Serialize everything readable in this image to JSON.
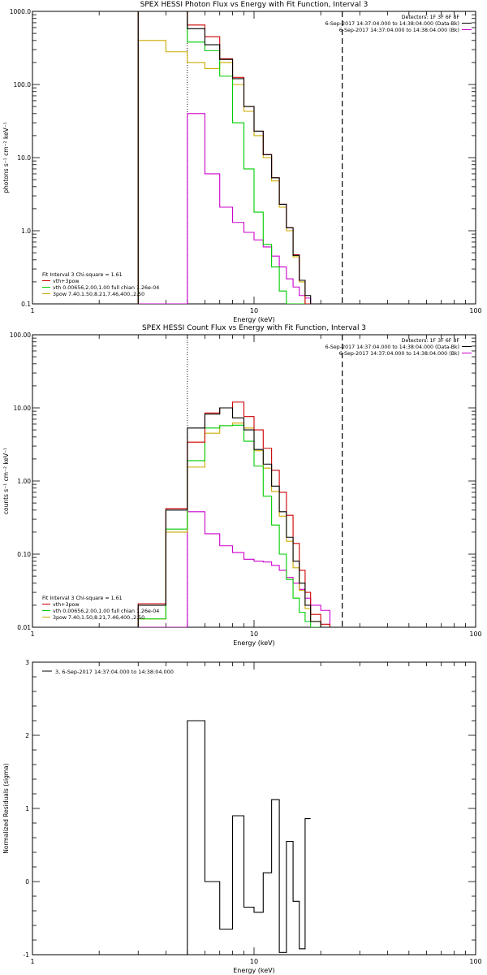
{
  "colors": {
    "data": "#000000",
    "bk": "#cc00cc",
    "total": "#cc0000",
    "vth": "#00cc00",
    "pow": "#ccaa00"
  },
  "chart_data": [
    {
      "type": "line",
      "title": "SPEX HESSI Photon Flux vs Energy with Fit Function, Interval 3",
      "xlabel": "Energy (keV)",
      "ylabel": "photons s⁻¹ cm⁻² keV⁻¹",
      "xscale": "log",
      "yscale": "log",
      "xlim": [
        1,
        100
      ],
      "ylim": [
        0.1,
        1000
      ],
      "xticks": [
        "1",
        "10",
        "100"
      ],
      "yticks": [
        "0.1",
        "1.0",
        "10.0",
        "100.0",
        "1000.0"
      ],
      "edges": [
        3,
        4,
        5,
        6,
        7,
        8,
        9,
        10,
        11,
        12,
        13,
        14,
        15,
        16,
        17,
        18,
        20,
        22,
        25
      ],
      "vlines": [
        {
          "x": 5,
          "style": "dotted"
        },
        {
          "x": 25,
          "style": "dashed"
        }
      ],
      "legend_top": [
        {
          "text": "Detectors: 1F 3F 6F 8F"
        },
        {
          "text": "6-Sep-2017 14:37:04.000 to 14:38:04.000 (Data-Bk)",
          "series": "data"
        },
        {
          "text": "6-Sep-2017 14:37:04.000 to 14:38:04.000 (Bk)",
          "series": "bk"
        }
      ],
      "legend_bottom": [
        {
          "text": "Fit Interval 3   Chi-square = 1.61"
        },
        {
          "text": "vth+3pow",
          "series": "total"
        },
        {
          "text": "vth 0.00656,2.00,1.00   full chian 1.26e-04",
          "series": "vth"
        },
        {
          "text": "3pow 7.40,1.50,8.21,7.46,400.,2.50",
          "series": "pow"
        }
      ],
      "series": [
        {
          "key": "data",
          "values": [
            1000,
            1000,
            580,
            350,
            220,
            120,
            50,
            23,
            11,
            5.3,
            2.3,
            1.1,
            0.46,
            0.21,
            0.13,
            0.1,
            0.1,
            0.1
          ]
        },
        {
          "key": "total",
          "values": [
            1000,
            1000,
            650,
            450,
            225,
            125,
            50,
            23,
            11,
            5.3,
            2.3,
            1.1,
            0.47,
            0.21,
            0.1,
            0.1,
            0.1,
            0.1
          ]
        },
        {
          "key": "vth",
          "values": [
            1000,
            1000,
            380,
            290,
            130,
            30,
            7.0,
            1.8,
            0.65,
            0.32,
            0.15,
            0.1,
            0.1,
            0.1,
            0.1,
            0.1,
            0.1,
            0.1
          ]
        },
        {
          "key": "pow",
          "values": [
            400,
            280,
            200,
            165,
            200,
            100,
            43,
            20,
            10,
            4.8,
            2.1,
            1.0,
            0.44,
            0.2,
            0.1,
            0.1,
            0.1,
            0.1
          ]
        },
        {
          "key": "bk",
          "values": [
            0.1,
            0.1,
            40,
            6.0,
            2.1,
            1.3,
            0.95,
            0.75,
            0.6,
            0.45,
            0.32,
            0.22,
            0.17,
            0.13,
            0.12,
            0.1,
            0.1,
            0.1
          ]
        }
      ]
    },
    {
      "type": "line",
      "title": "SPEX HESSI Count Flux vs Energy with Fit Function, Interval 3",
      "xlabel": "Energy (keV)",
      "ylabel": "counts s⁻¹ cm⁻² keV⁻¹",
      "xscale": "log",
      "yscale": "log",
      "xlim": [
        1,
        100
      ],
      "ylim": [
        0.01,
        100
      ],
      "xticks": [
        "1",
        "10",
        "100"
      ],
      "yticks": [
        "0.01",
        "0.10",
        "1.00",
        "10.00",
        "100.00"
      ],
      "edges": [
        3,
        4,
        5,
        6,
        7,
        8,
        9,
        10,
        11,
        12,
        13,
        14,
        15,
        16,
        17,
        18,
        20,
        22,
        25
      ],
      "vlines": [
        {
          "x": 5,
          "style": "dotted"
        },
        {
          "x": 25,
          "style": "dashed"
        }
      ],
      "legend_top": [
        {
          "text": "Detectors: 1F 3F 6F 8F"
        },
        {
          "text": "6-Sep-2017 14:37:04.000 to 14:38:04.000 (Data-Bk)",
          "series": "data"
        },
        {
          "text": "6-Sep-2017 14:37:04.000 to 14:38:04.000 (Bk)",
          "series": "bk"
        }
      ],
      "legend_bottom": [
        {
          "text": "Fit Interval 3   Chi-square = 1.61"
        },
        {
          "text": "vth+3pow",
          "series": "total"
        },
        {
          "text": "vth 0.00656,2.00,1.00   full chian 1.26e-04",
          "series": "vth"
        },
        {
          "text": "3pow 7.40,1.50,8.21,7.46,400.,2.50",
          "series": "pow"
        }
      ],
      "series": [
        {
          "key": "data",
          "values": [
            0.02,
            0.4,
            5.3,
            8.2,
            10.0,
            7.3,
            5.0,
            2.7,
            1.7,
            0.85,
            0.38,
            0.17,
            0.08,
            0.04,
            0.02,
            0.012,
            0.01,
            0.01
          ]
        },
        {
          "key": "total",
          "values": [
            0.021,
            0.42,
            3.4,
            8.5,
            10.0,
            12.0,
            7.6,
            5.0,
            2.8,
            1.4,
            0.7,
            0.34,
            0.14,
            0.06,
            0.03,
            0.015,
            0.011,
            0.01
          ]
        },
        {
          "key": "vth",
          "values": [
            0.013,
            0.22,
            1.9,
            5.3,
            5.7,
            5.8,
            3.5,
            1.6,
            0.62,
            0.25,
            0.1,
            0.045,
            0.025,
            0.016,
            0.012,
            0.01,
            0.01,
            0.01
          ]
        },
        {
          "key": "pow",
          "values": [
            0.013,
            0.2,
            1.55,
            4.5,
            5.7,
            6.2,
            5.3,
            2.6,
            1.5,
            0.72,
            0.33,
            0.15,
            0.065,
            0.032,
            0.018,
            0.012,
            0.01,
            0.01
          ]
        },
        {
          "key": "bk",
          "values": [
            0.01,
            0.01,
            0.38,
            0.19,
            0.13,
            0.105,
            0.085,
            0.08,
            0.078,
            0.07,
            0.06,
            0.048,
            0.04,
            0.033,
            0.025,
            0.02,
            0.017,
            0.01
          ]
        }
      ]
    },
    {
      "type": "line",
      "title": "",
      "xlabel": "Energy (keV)",
      "ylabel": "Normalized Residuals (sigma)",
      "xscale": "log",
      "yscale": "linear",
      "xlim": [
        1,
        100
      ],
      "ylim": [
        -1,
        3
      ],
      "xticks": [
        "1",
        "10",
        "100"
      ],
      "yticks": [
        "-1",
        "0",
        "1",
        "2",
        "3"
      ],
      "edges": [
        5,
        6,
        7,
        8,
        9,
        10,
        11,
        12,
        13,
        14,
        15,
        16,
        17,
        18,
        20
      ],
      "legend_top": [
        {
          "text": "3,  6-Sep-2017 14:37:04.000 to 14:38:04.000",
          "series": "data"
        }
      ],
      "series": [
        {
          "key": "data",
          "values": [
            2.2,
            0.0,
            -0.65,
            0.9,
            -0.35,
            -0.42,
            0.12,
            1.12,
            -0.97,
            0.55,
            -0.27,
            -0.92,
            0.86
          ]
        }
      ]
    }
  ]
}
